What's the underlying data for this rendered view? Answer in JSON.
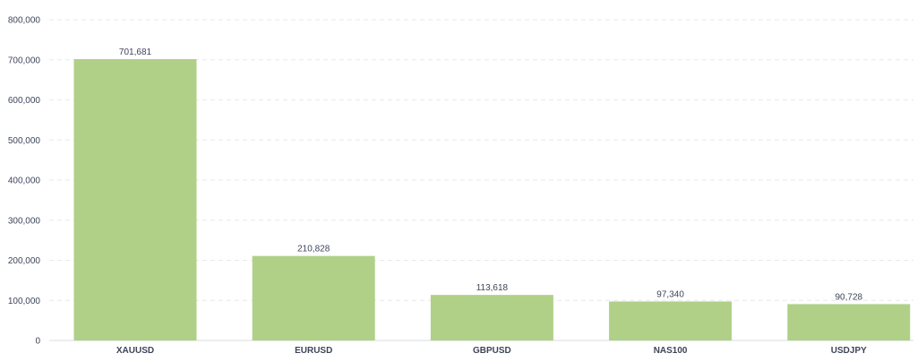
{
  "chart_data": {
    "type": "bar",
    "title": "",
    "xlabel": "",
    "ylabel": "",
    "categories": [
      "XAUUSD",
      "EURUSD",
      "GBPUSD",
      "NAS100",
      "USDJPY"
    ],
    "values": [
      701681,
      210828,
      113618,
      97340,
      90728
    ],
    "value_labels": [
      "701,681",
      "210,828",
      "113,618",
      "97,340",
      "90,728"
    ],
    "ylim": [
      0,
      800000
    ],
    "yticks": [
      0,
      100000,
      200000,
      300000,
      400000,
      500000,
      600000,
      700000,
      800000
    ],
    "ytick_labels": [
      "0",
      "100,000",
      "200,000",
      "300,000",
      "400,000",
      "500,000",
      "600,000",
      "700,000",
      "800,000"
    ],
    "grid": true,
    "bar_color": "#b0d088"
  }
}
